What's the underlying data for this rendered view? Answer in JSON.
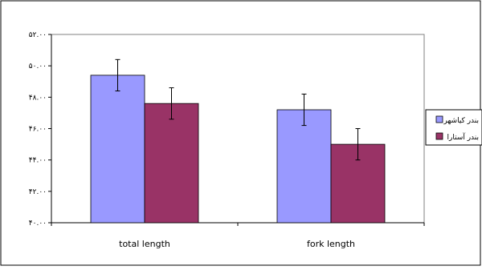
{
  "chart_data": {
    "type": "bar",
    "categories": [
      "total length",
      "fork length"
    ],
    "series": [
      {
        "name": "بندر کیاشهر",
        "color": "#9999ff",
        "values": [
          49.4,
          47.2
        ],
        "errors": [
          1.0,
          1.0
        ]
      },
      {
        "name": "بندر آستارا",
        "color": "#993366",
        "values": [
          47.6,
          45.0
        ],
        "errors": [
          1.0,
          1.0
        ]
      }
    ],
    "ylim": [
      40,
      52
    ],
    "yticks": [
      "۴۰.۰۰",
      "۴۲.۰۰",
      "۴۴.۰۰",
      "۴۶.۰۰",
      "۴۸.۰۰",
      "۵۰.۰۰",
      "۵۲.۰۰"
    ],
    "ytick_values": [
      40,
      42,
      44,
      46,
      48,
      50,
      52
    ],
    "grid": false,
    "legend_position": "right",
    "plot_background": "#ffffff",
    "axis_color": "#000000"
  }
}
